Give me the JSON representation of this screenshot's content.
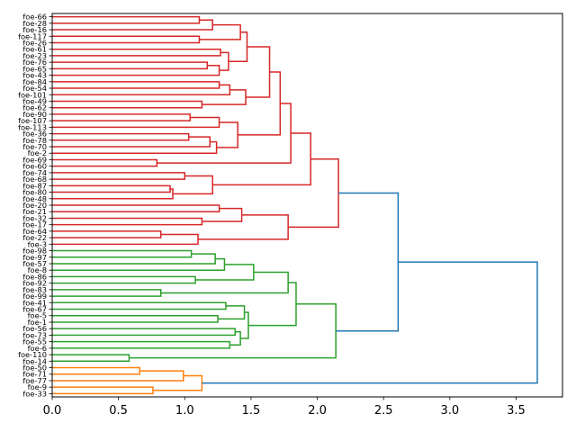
{
  "chart_data": {
    "type": "dendrogram",
    "orientation": "left",
    "xlim": [
      0,
      3.85
    ],
    "xticks": [
      "0.0",
      "0.5",
      "1.0",
      "1.5",
      "2.0",
      "2.5",
      "3.0",
      "3.5"
    ],
    "xtick_values": [
      0,
      0.5,
      1.0,
      1.5,
      2.0,
      2.5,
      3.0,
      3.5
    ],
    "above_threshold_color": "#1f77b4",
    "leaves": [
      "foe-66",
      "foe-28",
      "foe-16",
      "foe-117",
      "foe-26",
      "foe-61",
      "foe-23",
      "foe-76",
      "foe-65",
      "foe-43",
      "foe-84",
      "foe-54",
      "foe-101",
      "foe-49",
      "foe-62",
      "foe-90",
      "foe-107",
      "foe-113",
      "foe-36",
      "foe-78",
      "foe-70",
      "foe-2",
      "foe-69",
      "foe-60",
      "foe-74",
      "foe-68",
      "foe-87",
      "foe-80",
      "foe-48",
      "foe-20",
      "foe-21",
      "foe-32",
      "foe-17",
      "foe-64",
      "foe-22",
      "foe-3",
      "foe-98",
      "foe-97",
      "foe-57",
      "foe-8",
      "foe-86",
      "foe-92",
      "foe-83",
      "foe-99",
      "foe-41",
      "foe-67",
      "foe-5",
      "foe-1",
      "foe-56",
      "foe-73",
      "foe-55",
      "foe-6",
      "foe-110",
      "foe-14",
      "foe-50",
      "foe-71",
      "foe-77",
      "foe-9",
      "foe-33"
    ],
    "tree": [
      3.66,
      [
        2.61,
        {
          "color": "#d62728",
          "node": [
            2.16,
            [
              1.95,
              [
                1.8,
                [
                  1.72,
                  [
                    1.64,
                    [
                      1.47,
                      [
                        1.42,
                        [
                          1.21,
                          [
                            1.11,
                            0,
                            1
                          ],
                          2
                        ],
                        [
                          1.11,
                          3,
                          4
                        ]
                      ],
                      [
                        1.33,
                        [
                          1.27,
                          5,
                          6
                        ],
                        [
                          1.26,
                          [
                            1.17,
                            7,
                            8
                          ],
                          9
                        ]
                      ]
                    ],
                    [
                      1.46,
                      [
                        1.34,
                        [
                          1.26,
                          10,
                          11
                        ],
                        12
                      ],
                      [
                        1.13,
                        13,
                        14
                      ]
                    ]
                  ],
                  [
                    1.4,
                    [
                      1.26,
                      [
                        1.04,
                        15,
                        16
                      ],
                      17
                    ],
                    [
                      1.24,
                      [
                        1.19,
                        [
                          1.03,
                          18,
                          19
                        ],
                        20
                      ],
                      21
                    ]
                  ]
                ],
                [
                  0.79,
                  22,
                  23
                ]
              ],
              [
                1.21,
                [
                  1.0,
                  24,
                  25
                ],
                [
                  0.91,
                  [
                    0.89,
                    26,
                    27
                  ],
                  28
                ]
              ]
            ],
            [
              1.78,
              [
                1.43,
                [
                  1.26,
                  29,
                  30
                ],
                [
                  1.13,
                  31,
                  32
                ]
              ],
              [
                1.1,
                [
                  0.82,
                  33,
                  34
                ],
                35
              ]
            ]
          ]
        },
        {
          "color": "#2ca02c",
          "node": [
            2.14,
            [
              1.84,
              [
                1.78,
                [
                  1.52,
                  [
                    1.3,
                    [
                      1.23,
                      [
                        1.05,
                        36,
                        37
                      ],
                      38
                    ],
                    39
                  ],
                  [
                    1.08,
                    40,
                    41
                  ]
                ],
                [
                  0.82,
                  42,
                  43
                ]
              ],
              [
                1.48,
                [
                  1.45,
                  [
                    1.31,
                    44,
                    45
                  ],
                  [
                    1.25,
                    46,
                    47
                  ]
                ],
                [
                  1.42,
                  [
                    1.38,
                    48,
                    49
                  ],
                  [
                    1.34,
                    50,
                    51
                  ]
                ]
              ]
            ],
            [
              0.58,
              52,
              53
            ]
          ]
        }
      ],
      {
        "color": "#ff7f0e",
        "node": [
          1.13,
          [
            0.99,
            [
              0.66,
              54,
              55
            ],
            56
          ],
          [
            0.76,
            57,
            58
          ]
        ]
      }
    ]
  }
}
